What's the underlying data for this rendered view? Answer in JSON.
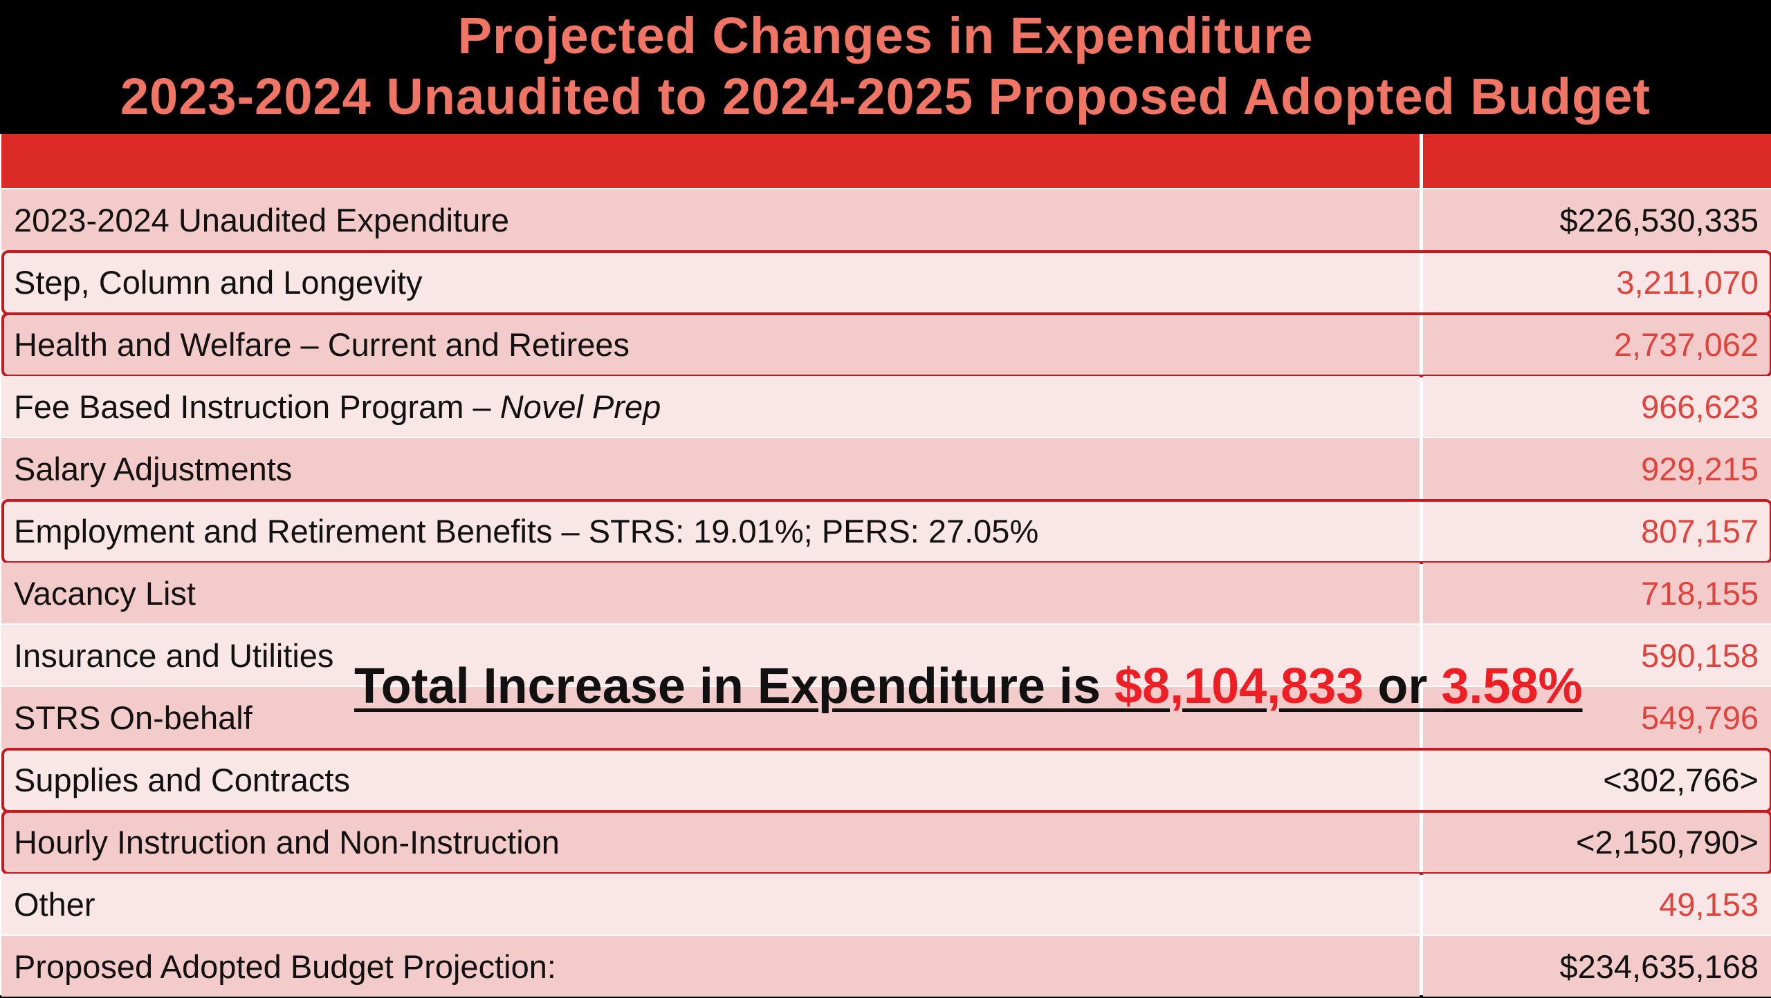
{
  "title": {
    "line1": "Projected Changes in Expenditure",
    "line2": "2023-2024 Unaudited to 2024-2025 Proposed Adopted Budget"
  },
  "rows": [
    {
      "label": "2023-2024 Unaudited Expenditure",
      "label_italic": "",
      "value": "$226,530,335",
      "value_color": "black",
      "highlighted": false
    },
    {
      "label": "Step, Column and Longevity",
      "label_italic": "",
      "value": "3,211,070",
      "value_color": "red",
      "highlighted": true
    },
    {
      "label": "Health and Welfare – Current and Retirees",
      "label_italic": "",
      "value": "2,737,062",
      "value_color": "red",
      "highlighted": true
    },
    {
      "label": "Fee Based Instruction Program – ",
      "label_italic": "Novel Prep",
      "value": "966,623",
      "value_color": "red",
      "highlighted": false
    },
    {
      "label": "Salary Adjustments",
      "label_italic": "",
      "value": "929,215",
      "value_color": "red",
      "highlighted": false
    },
    {
      "label": "Employment and Retirement Benefits – STRS: 19.01%; PERS: 27.05%",
      "label_italic": "",
      "value": "807,157",
      "value_color": "red",
      "highlighted": true
    },
    {
      "label": "Vacancy List",
      "label_italic": "",
      "value": "718,155",
      "value_color": "red",
      "highlighted": false
    },
    {
      "label": "Insurance and Utilities",
      "label_italic": "",
      "value": "590,158",
      "value_color": "red",
      "highlighted": false
    },
    {
      "label": "STRS On-behalf",
      "label_italic": "",
      "value": "549,796",
      "value_color": "red",
      "highlighted": false
    },
    {
      "label": "Supplies and Contracts",
      "label_italic": "",
      "value": "<302,766>",
      "value_color": "black",
      "highlighted": true
    },
    {
      "label": "Hourly Instruction and Non-Instruction",
      "label_italic": "",
      "value": "<2,150,790>",
      "value_color": "black",
      "highlighted": true
    },
    {
      "label": "Other",
      "label_italic": "",
      "value": "49,153",
      "value_color": "red",
      "highlighted": false
    },
    {
      "label": "Proposed Adopted Budget Projection:",
      "label_italic": "",
      "value": "$234,635,168",
      "value_color": "black",
      "highlighted": false
    }
  ],
  "overlay": {
    "prefix": "Total Increase in Expenditure is ",
    "amount": "$8,104,833",
    "middle": " or ",
    "percent": "3.58%"
  },
  "colors": {
    "title_text": "#f07565",
    "header_red": "#dc2a26",
    "row_dark": "#f4cbcb",
    "row_light": "#f9e6e6",
    "value_red": "#e0433b",
    "highlight_border": "#c21a1f",
    "overlay_red": "#ee1f24"
  }
}
